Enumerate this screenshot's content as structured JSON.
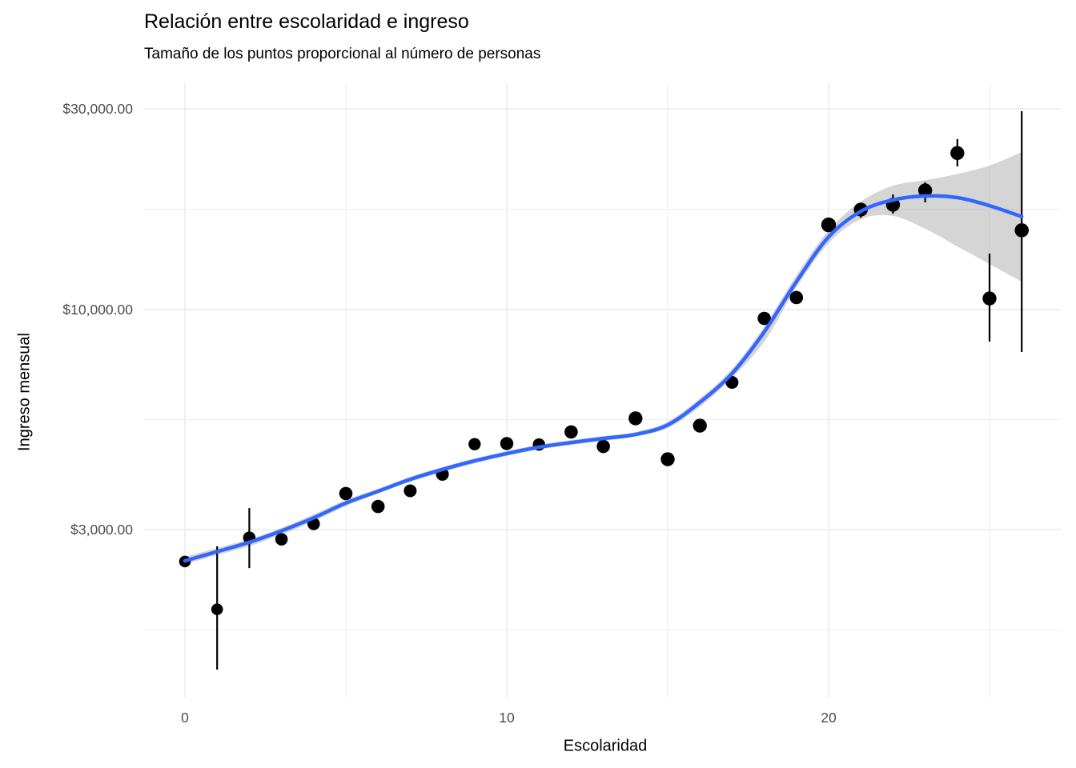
{
  "header": {
    "title": "Relación entre escolaridad e ingreso",
    "subtitle": "Tamaño de los puntos proporcional al número de personas"
  },
  "chart_data": {
    "type": "scatter",
    "title": "Relación entre escolaridad e ingreso",
    "subtitle": "Tamaño de los puntos proporcional al número de personas",
    "xlabel": "Escolaridad",
    "ylabel": "Ingreso mensual",
    "legend": "none",
    "grid": "on",
    "x_axis": {
      "scale": "linear",
      "ticks": [
        0,
        10,
        20
      ],
      "minor_ticks": [
        5,
        15,
        25
      ],
      "range": [
        -1.3,
        27.3
      ]
    },
    "y_axis": {
      "scale": "log10",
      "ticks": [
        {
          "value": 3000,
          "label": "$3,000.00"
        },
        {
          "value": 10000,
          "label": "$10,000.00"
        },
        {
          "value": 30000,
          "label": "$30,000.00"
        }
      ],
      "minor_ticks": [
        1732,
        5477,
        17321
      ],
      "range": [
        1200,
        34500
      ]
    },
    "points": [
      {
        "x": 0,
        "income": 2520,
        "r": 7.3
      },
      {
        "x": 1,
        "income": 1940,
        "r": 7.3,
        "lo": 1395,
        "hi": 2740
      },
      {
        "x": 2,
        "income": 2870,
        "r": 7.8,
        "lo": 2430,
        "hi": 3375
      },
      {
        "x": 3,
        "income": 2845,
        "r": 7.8
      },
      {
        "x": 4,
        "income": 3095,
        "r": 7.8
      },
      {
        "x": 5,
        "income": 3655,
        "r": 8.3
      },
      {
        "x": 6,
        "income": 3405,
        "r": 8.3
      },
      {
        "x": 7,
        "income": 3710,
        "r": 8.0
      },
      {
        "x": 8,
        "income": 4060,
        "r": 8.0
      },
      {
        "x": 9,
        "income": 4790,
        "r": 7.7
      },
      {
        "x": 10,
        "income": 4805,
        "r": 8.2
      },
      {
        "x": 11,
        "income": 4780,
        "r": 7.7
      },
      {
        "x": 12,
        "income": 5120,
        "r": 8.3
      },
      {
        "x": 13,
        "income": 4730,
        "r": 8.3
      },
      {
        "x": 14,
        "income": 5515,
        "r": 8.7
      },
      {
        "x": 15,
        "income": 4410,
        "r": 8.7
      },
      {
        "x": 16,
        "income": 5300,
        "r": 8.7
      },
      {
        "x": 17,
        "income": 6715,
        "r": 8.0
      },
      {
        "x": 18,
        "income": 9530,
        "r": 8.3
      },
      {
        "x": 19,
        "income": 10680,
        "r": 8.3
      },
      {
        "x": 20,
        "income": 15900,
        "r": 9.2
      },
      {
        "x": 21,
        "income": 17285,
        "r": 8.7,
        "lo": 16530,
        "hi": 17850
      },
      {
        "x": 22,
        "income": 17750,
        "r": 8.7,
        "lo": 16910,
        "hi": 18780
      },
      {
        "x": 23,
        "income": 19200,
        "r": 8.7,
        "lo": 17980,
        "hi": 20070
      },
      {
        "x": 24,
        "income": 23550,
        "r": 8.7,
        "lo": 21890,
        "hi": 25420
      },
      {
        "x": 25,
        "income": 10630,
        "r": 8.7,
        "lo": 8395,
        "hi": 13585
      },
      {
        "x": 26,
        "income": 15430,
        "r": 8.8,
        "lo": 7930,
        "hi": 29620
      }
    ],
    "smooth_line": {
      "x": [
        0,
        1,
        2,
        3,
        4,
        5,
        6,
        7,
        8,
        9,
        10,
        11,
        12,
        13,
        14,
        15,
        16,
        17,
        18,
        19,
        20,
        21,
        22,
        23,
        24,
        25,
        26
      ],
      "income": [
        2530,
        2660,
        2800,
        2980,
        3200,
        3470,
        3700,
        3950,
        4170,
        4370,
        4550,
        4710,
        4830,
        4940,
        5050,
        5320,
        6020,
        7050,
        8850,
        11650,
        14890,
        17120,
        18220,
        18620,
        18460,
        17660,
        16630
      ]
    },
    "ribbon": {
      "x": [
        0,
        1,
        2,
        3,
        4,
        5,
        6,
        7,
        8,
        9,
        10,
        11,
        12,
        13,
        14,
        15,
        16,
        17,
        18,
        19,
        20,
        21,
        22,
        23,
        24,
        25,
        26
      ],
      "lo": [
        2482,
        2611,
        2741,
        2921,
        3140,
        3413,
        3655,
        3899,
        4105,
        4312,
        4490,
        4654,
        4772,
        4875,
        4995,
        5232,
        5876,
        6885,
        8384,
        11303,
        14380,
        16400,
        16690,
        15560,
        14130,
        12830,
        11650
      ],
      "hi": [
        2586,
        2713,
        2847,
        3027,
        3261,
        3528,
        3751,
        4005,
        4222,
        4430,
        4608,
        4772,
        4899,
        5007,
        5119,
        5418,
        6153,
        7233,
        9122,
        12068,
        15430,
        18059,
        19700,
        20300,
        21000,
        22000,
        23680
      ]
    },
    "style": {
      "line_color": "#3366FF",
      "ribbon_color": "rgba(125,125,125,0.32)",
      "point_color": "#000000",
      "errorbar_color": "#000000",
      "grid_color": "#E9E9E9",
      "tick_text_color": "#4D4D4D",
      "text_color": "#000000",
      "background": "#FFFFFF"
    }
  }
}
